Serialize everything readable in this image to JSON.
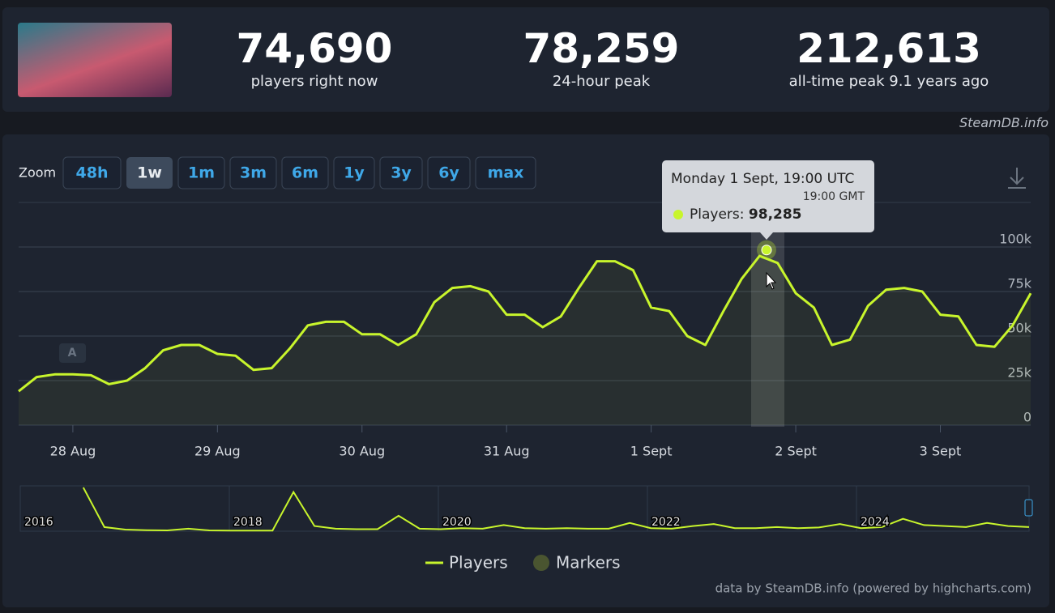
{
  "header": {
    "stats": [
      {
        "value": "74,690",
        "label": "players right now"
      },
      {
        "value": "78,259",
        "label": "24-hour peak"
      },
      {
        "value": "212,613",
        "label": "all-time peak 9.1 years ago"
      }
    ],
    "source": "SteamDB.info"
  },
  "zoom": {
    "label": "Zoom",
    "options": [
      "48h",
      "1w",
      "1m",
      "3m",
      "6m",
      "1y",
      "3y",
      "6y",
      "max"
    ],
    "active": "1w"
  },
  "chart_data": {
    "type": "line",
    "categories": [
      null,
      null,
      null,
      "28 Aug",
      null,
      null,
      null,
      null,
      null,
      null,
      null,
      "29 Aug",
      null,
      null,
      null,
      null,
      null,
      null,
      null,
      "30 Aug",
      null,
      null,
      null,
      null,
      null,
      null,
      null,
      "31 Aug",
      null,
      null,
      null,
      null,
      null,
      null,
      null,
      "1 Sept",
      null,
      null,
      null,
      null,
      null,
      null,
      null,
      "2 Sept",
      null,
      null,
      null,
      null,
      null,
      null,
      null,
      "3 Sept",
      null,
      null,
      null,
      null,
      null
    ],
    "series": [
      {
        "name": "Players",
        "color": "#c8f52c",
        "values": [
          19000,
          27000,
          28500,
          28500,
          28000,
          23000,
          25000,
          32000,
          42000,
          45000,
          45000,
          40000,
          39000,
          31000,
          32000,
          43000,
          56000,
          58000,
          58000,
          51000,
          51000,
          45000,
          51000,
          69000,
          77000,
          78000,
          75000,
          62000,
          62000,
          55000,
          61000,
          77000,
          92000,
          92000,
          87000,
          66000,
          64000,
          50000,
          45000,
          64000,
          82000,
          95000,
          91000,
          74000,
          66000,
          45000,
          48000,
          67000,
          76000,
          77000,
          75000,
          62000,
          61000,
          45000,
          44000,
          56000,
          74000
        ]
      }
    ],
    "ylim": [
      0,
      125000
    ],
    "yticks": [
      0,
      {
        "value": 25000,
        "label": "25k"
      },
      {
        "value": 50000,
        "label": "50k"
      },
      {
        "value": 75000,
        "label": "75k"
      },
      {
        "value": 100000,
        "label": "100k"
      }
    ],
    "grid": true,
    "tooltip": {
      "title": "Monday 1 Sept, 19:00 UTC",
      "subtitle": "19:00 GMT",
      "value": 98285,
      "value_label": "98,285"
    },
    "annotation": "A",
    "navigator": {
      "values": [
        null,
        null,
        null,
        212000,
        20000,
        8000,
        5000,
        4000,
        12000,
        4000,
        3000,
        3000,
        3000,
        190000,
        25000,
        12000,
        10000,
        10000,
        75000,
        12000,
        10000,
        15000,
        12000,
        30000,
        15000,
        12000,
        15000,
        12000,
        12000,
        40000,
        15000,
        12000,
        25000,
        35000,
        15000,
        15000,
        20000,
        15000,
        18000,
        35000,
        15000,
        20000,
        60000,
        30000,
        25000,
        20000,
        40000,
        25000,
        20000
      ],
      "ylim": [
        0,
        220000
      ],
      "labels": [
        "2016",
        "2018",
        "2020",
        "2022",
        "2024"
      ]
    },
    "markers": {
      "name": "Markers",
      "color": "#4a5530"
    },
    "credits": "data by SteamDB.info (powered by highcharts.com)"
  }
}
